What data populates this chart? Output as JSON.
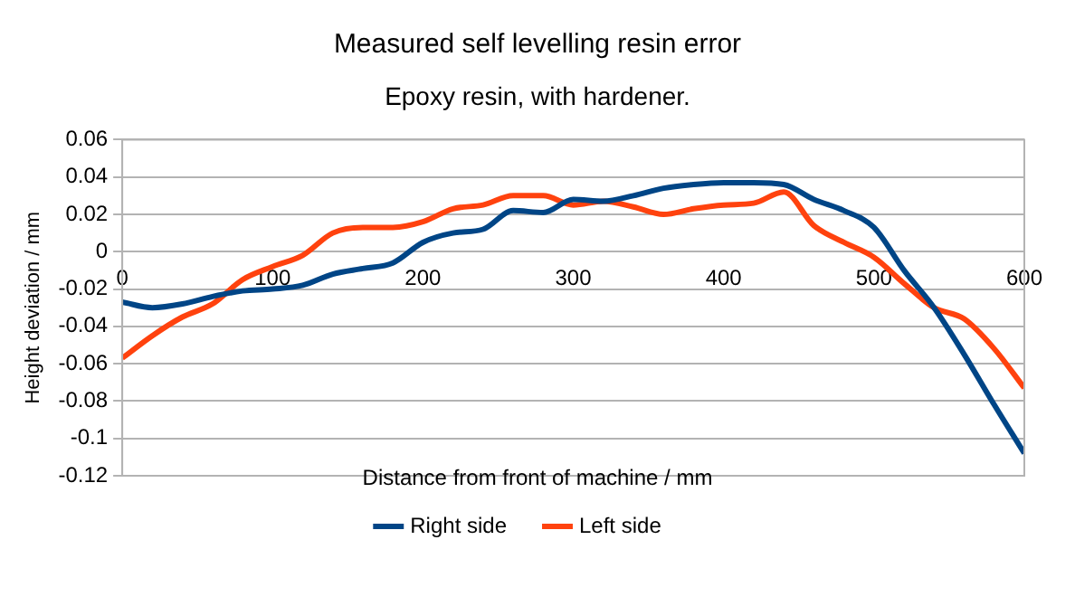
{
  "chart_data": {
    "type": "line",
    "title": "Measured self levelling resin error",
    "subtitle": "Epoxy resin, with hardener.",
    "xlabel": "Distance from front of machine / mm",
    "ylabel": "Height deviation / mm",
    "x": [
      0,
      20,
      40,
      60,
      80,
      100,
      120,
      140,
      160,
      180,
      200,
      220,
      240,
      260,
      280,
      300,
      320,
      340,
      360,
      380,
      400,
      420,
      440,
      460,
      480,
      500,
      520,
      540,
      560,
      580,
      600
    ],
    "series": [
      {
        "name": "Right side",
        "color": "#004586",
        "values": [
          -0.027,
          -0.03,
          -0.028,
          -0.024,
          -0.021,
          -0.02,
          -0.018,
          -0.012,
          -0.009,
          -0.006,
          0.005,
          0.01,
          0.012,
          0.022,
          0.021,
          0.028,
          0.027,
          0.03,
          0.034,
          0.036,
          0.037,
          0.037,
          0.036,
          0.028,
          0.022,
          0.013,
          -0.01,
          -0.03,
          -0.055,
          -0.082,
          -0.108
        ]
      },
      {
        "name": "Left side",
        "color": "#ff420e",
        "values": [
          -0.057,
          -0.045,
          -0.035,
          -0.028,
          -0.015,
          -0.008,
          -0.002,
          0.01,
          0.013,
          0.013,
          0.016,
          0.023,
          0.025,
          0.03,
          0.03,
          0.025,
          0.027,
          0.024,
          0.02,
          0.023,
          0.025,
          0.026,
          0.032,
          0.014,
          0.005,
          -0.003,
          -0.017,
          -0.03,
          -0.036,
          -0.052,
          -0.073
        ]
      }
    ],
    "xlim": [
      0,
      600
    ],
    "xticks": [
      0,
      100,
      200,
      300,
      400,
      500,
      600
    ],
    "ylim": [
      -0.12,
      0.06
    ],
    "yticks": [
      -0.12,
      -0.1,
      -0.08,
      -0.06,
      -0.04,
      -0.02,
      0,
      0.02,
      0.04,
      0.06
    ],
    "grid": "y",
    "legend": "bottom",
    "marker": "none",
    "line_style": "solid"
  }
}
